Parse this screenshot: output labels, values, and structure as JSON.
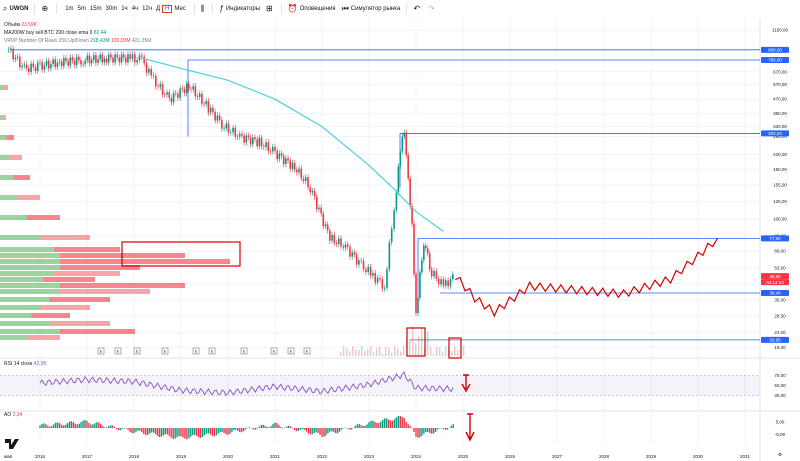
{
  "toolbar": {
    "symbol": "UWGN",
    "add_symbol_icon": "plus-circle-icon",
    "timeframes": [
      "1m",
      "5m",
      "15m",
      "30m",
      "1ч",
      "4ч",
      "12ч",
      "Д",
      "Н",
      "Мес"
    ],
    "active_timeframe": "Н",
    "indicators_label": "Индикаторы",
    "alerts_label": "Оповещения",
    "replay_label": "Симулятор рынка"
  },
  "legend": {
    "volume_label": "Объём",
    "volume_value": "23,59K",
    "ma_label": "MA200W buy sell BTC 200 close ema 0",
    "ma_value": "82,44",
    "vrvp_label": "VRVP Number Of Rows 250 Up/Down",
    "vrvp_up": "218,43M",
    "vrvp_down": "190,93M",
    "vrvp_total": "421,35M"
  },
  "price_tags": [
    {
      "label": "890,00",
      "color": "#2962ff"
    },
    {
      "label": "780,00",
      "color": "#2962ff"
    },
    {
      "label": "302,00",
      "color": "#2962ff"
    },
    {
      "label": "77,80",
      "color": "#2962ff"
    },
    {
      "label": "45,90",
      "color": "#f23645"
    },
    {
      "label": "04:14:13",
      "color": "#f23645"
    },
    {
      "label": "38,40",
      "color": "#2962ff"
    },
    {
      "label": "20,95",
      "color": "#2962ff"
    }
  ],
  "rsi": {
    "label": "RSI 14 close",
    "value": "42,95",
    "levels": [
      "70,00",
      "50,00",
      "30,00"
    ]
  },
  "ao": {
    "label": "AO",
    "value": "2,34",
    "levels": [
      "5,00",
      "-5,00"
    ]
  },
  "x_axis": {
    "left_label": "май",
    "years": [
      "2016",
      "2017",
      "2018",
      "2019",
      "2020",
      "2021",
      "2022",
      "2023",
      "2024",
      "2025",
      "2026",
      "2027",
      "2028",
      "2029",
      "2030",
      "2031"
    ]
  },
  "event_marks": [
    "E",
    "E",
    "E",
    "E",
    "E",
    "E",
    "E",
    "E",
    "E",
    "E"
  ],
  "colors": {
    "up": "#089981",
    "down": "#f23645",
    "ma": "#4dd0e1",
    "forecast": "#d50000",
    "level": "#2962ff",
    "rsi": "#7e57c2"
  },
  "chart_data": [
    {
      "type": "line",
      "title": "UWGN",
      "scale": "log",
      "x": [
        "2015-05",
        "2015-09",
        "2016-01",
        "2016-06",
        "2016-12",
        "2017-06",
        "2017-12",
        "2018-03",
        "2018-06",
        "2018-10",
        "2019-03",
        "2019-08",
        "2019-12",
        "2020-04",
        "2020-09",
        "2021-01",
        "2021-06",
        "2021-10",
        "2022-03",
        "2022-07",
        "2022-11",
        "2023-02",
        "2023-05",
        "2023-08",
        "2023-09",
        "2023-10",
        "2023-11",
        "2023-12",
        "2024-01",
        "2024-03",
        "2024-05",
        "2024-08",
        "2024-11"
      ],
      "series": [
        {
          "values": [
            890,
            700,
            720,
            760,
            780,
            800,
            800,
            780,
            600,
            470,
            560,
            420,
            330,
            290,
            270,
            235,
            195,
            150,
            78,
            70,
            55,
            48,
            42,
            150,
            250,
            300,
            160,
            90,
            30,
            75,
            50,
            42,
            48
          ]
        }
      ],
      "ylim": [
        17,
        1150
      ],
      "y_ticks": [
        "1150,00",
        "890,00",
        "780,00",
        "670,00",
        "570,00",
        "470,00",
        "390,00",
        "330,00",
        "290,00",
        "230,00",
        "190,00",
        "155,00",
        "125,00",
        "100,00",
        "80,00",
        "66,00",
        "53,00",
        "43,50",
        "35,00",
        "28,50",
        "23,00",
        "19,00"
      ],
      "grid": true
    },
    {
      "type": "line",
      "title": "MA200W",
      "x": [
        "2018-03",
        "2019-01",
        "2020-01",
        "2021-01",
        "2022-01",
        "2023-01",
        "2023-07",
        "2024-01",
        "2024-08"
      ],
      "series": [
        {
          "values": [
            800,
            700,
            600,
            470,
            330,
            200,
            150,
            110,
            85
          ]
        }
      ]
    },
    {
      "type": "line",
      "title": "Forecast",
      "x": [
        "2024-11",
        "2025-04",
        "2025-09",
        "2026-06",
        "2027-06",
        "2028-06",
        "2029-06",
        "2030-01",
        "2030-06"
      ],
      "series": [
        {
          "values": [
            48,
            36,
            30,
            42,
            40,
            38,
            46,
            62,
            78
          ]
        }
      ]
    },
    {
      "type": "line",
      "title": "RSI 14 close",
      "ylim": [
        0,
        100
      ],
      "x": [
        "2016",
        "2017",
        "2018",
        "2019",
        "2020",
        "2021",
        "2022",
        "2023",
        "2023-10",
        "2024",
        "2024-11"
      ],
      "series": [
        {
          "values": [
            55,
            62,
            58,
            40,
            35,
            48,
            38,
            52,
            72,
            45,
            43
          ]
        }
      ]
    },
    {
      "type": "bar",
      "title": "AO",
      "categories": [
        "2016",
        "2017",
        "2018",
        "2019",
        "2020",
        "2021",
        "2022",
        "2023",
        "2023-10",
        "2024",
        "2024-11"
      ],
      "values": [
        2,
        5,
        -3,
        -8,
        -4,
        3,
        -6,
        4,
        9,
        -7,
        2
      ]
    }
  ]
}
